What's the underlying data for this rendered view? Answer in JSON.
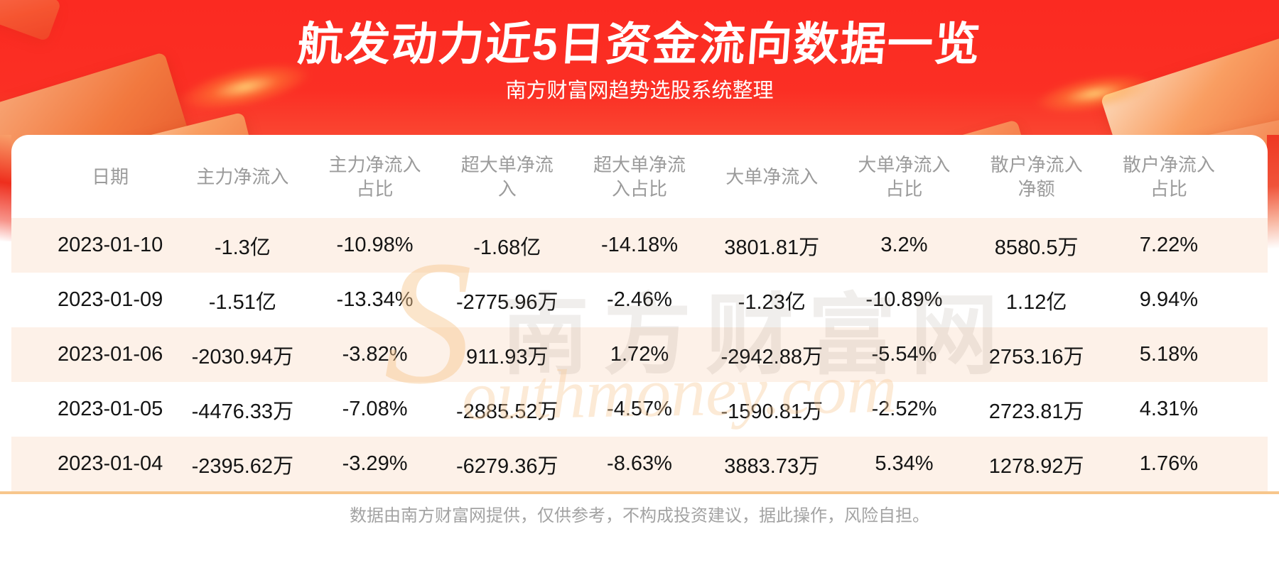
{
  "header": {
    "title": "航发动力近5日资金流向数据一览",
    "subtitle": "南方财富网趋势选股系统整理"
  },
  "chart_data": {
    "type": "table",
    "title": "航发动力近5日资金流向数据一览",
    "subtitle": "南方财富网趋势选股系统整理",
    "columns": [
      "日期",
      "主力净流入",
      "主力净流入占比",
      "超大单净流入",
      "超大单净流入占比",
      "大单净流入",
      "大单净流入占比",
      "散户净流入净额",
      "散户净流入占比"
    ],
    "rows": [
      [
        "2023-01-10",
        "-1.3亿",
        "-10.98%",
        "-1.68亿",
        "-14.18%",
        "3801.81万",
        "3.2%",
        "8580.5万",
        "7.22%"
      ],
      [
        "2023-01-09",
        "-1.51亿",
        "-13.34%",
        "-2775.96万",
        "-2.46%",
        "-1.23亿",
        "-10.89%",
        "1.12亿",
        "9.94%"
      ],
      [
        "2023-01-06",
        "-2030.94万",
        "-3.82%",
        "911.93万",
        "1.72%",
        "-2942.88万",
        "-5.54%",
        "2753.16万",
        "5.18%"
      ],
      [
        "2023-01-05",
        "-4476.33万",
        "-7.08%",
        "-2885.52万",
        "-4.57%",
        "-1590.81万",
        "-2.52%",
        "2723.81万",
        "4.31%"
      ],
      [
        "2023-01-04",
        "-2395.62万",
        "-3.29%",
        "-6279.36万",
        "-8.63%",
        "3883.73万",
        "5.34%",
        "1278.92万",
        "1.76%"
      ]
    ]
  },
  "watermark": {
    "initial": "S",
    "cn": "南方财富网",
    "en": "outhmoney.com"
  },
  "footer": {
    "disclaimer": "数据由南方财富网提供，仅供参考，不构成投资建议，据此操作，风险自担。"
  },
  "colors": {
    "banner_red": "#fb2a21",
    "row_alt": "#fdf1e8",
    "divider_orange": "#f7c68c",
    "header_text": "#9b9b9b"
  }
}
